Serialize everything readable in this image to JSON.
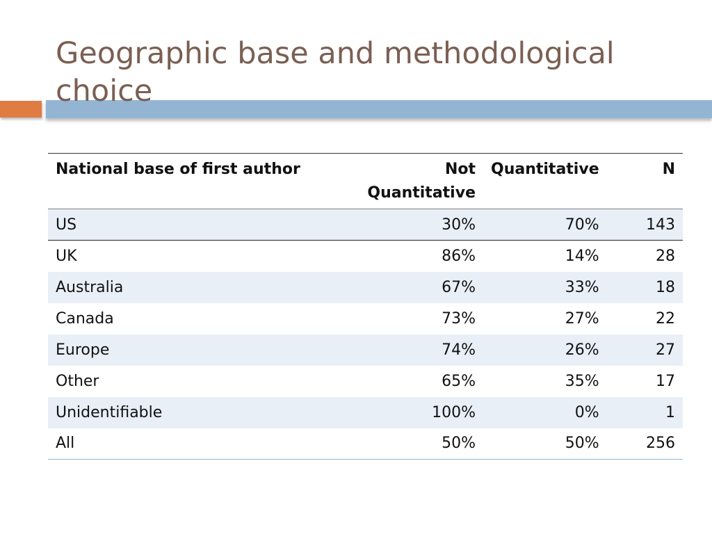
{
  "slide": {
    "title": "Geographic base and methodological choice"
  },
  "table": {
    "headers": {
      "country": "National base of first author",
      "not_quantitative": "Not Quantitative",
      "quantitative": "Quantitative",
      "n": "N"
    },
    "rows": [
      {
        "country": "US",
        "not_quantitative": "30%",
        "quantitative": "70%",
        "n": "143"
      },
      {
        "country": "UK",
        "not_quantitative": "86%",
        "quantitative": "14%",
        "n": "28"
      },
      {
        "country": "Australia",
        "not_quantitative": "67%",
        "quantitative": "33%",
        "n": "18"
      },
      {
        "country": "Canada",
        "not_quantitative": "73%",
        "quantitative": "27%",
        "n": "22"
      },
      {
        "country": "Europe",
        "not_quantitative": "74%",
        "quantitative": "26%",
        "n": "27"
      },
      {
        "country": "Other",
        "not_quantitative": "65%",
        "quantitative": "35%",
        "n": "17"
      },
      {
        "country": "Unidentifiable",
        "not_quantitative": "100%",
        "quantitative": "0%",
        "n": "1"
      },
      {
        "country": "All",
        "not_quantitative": "50%",
        "quantitative": "50%",
        "n": "256"
      }
    ]
  },
  "colors": {
    "title_text": "#7a5f53",
    "accent_orange": "#e07b42",
    "accent_blue": "#93b5d3",
    "row_band": "#e9eff7"
  }
}
